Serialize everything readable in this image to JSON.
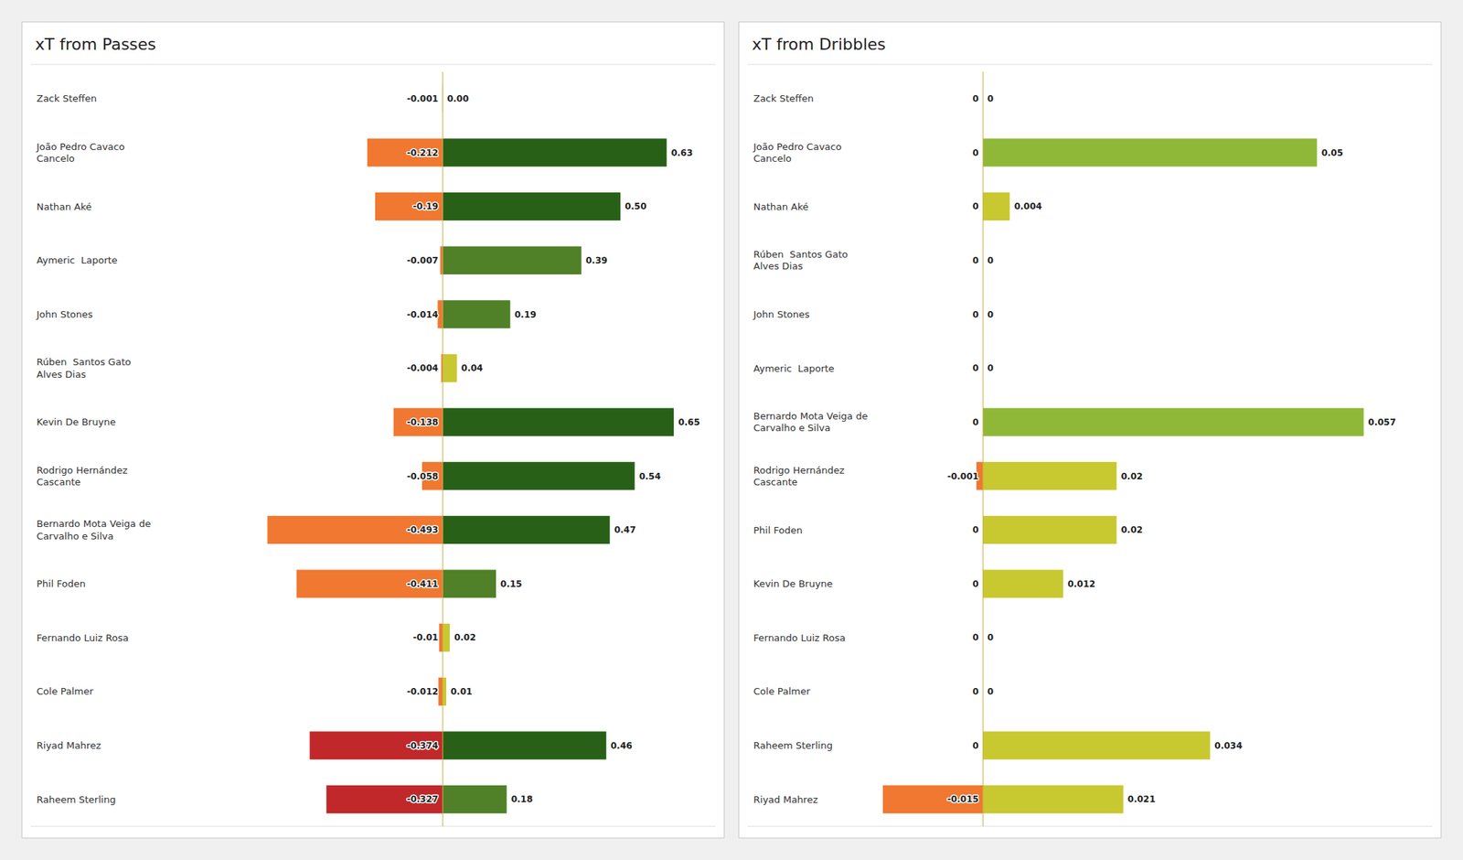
{
  "chart_data": [
    {
      "type": "bar",
      "orientation": "horizontal",
      "title": "xT from Passes",
      "categories": [
        "Zack Steffen",
        "João Pedro Cavaco\nCancelo",
        "Nathan Aké",
        "Aymeric  Laporte",
        "John Stones",
        "Rúben  Santos Gato\nAlves Dias",
        "Kevin De Bruyne",
        "Rodrigo Hernández\nCascante",
        "Bernardo Mota Veiga de\nCarvalho e Silva",
        "Phil Foden",
        "Fernando Luiz Rosa",
        "Cole Palmer",
        "Riyad Mahrez",
        "Raheem Sterling"
      ],
      "series": [
        {
          "values": [
            -0.001,
            -0.212,
            -0.19,
            -0.007,
            -0.014,
            -0.004,
            -0.138,
            -0.058,
            -0.493,
            -0.411,
            -0.01,
            -0.012,
            -0.374,
            -0.327
          ],
          "value_labels": [
            "-0.001",
            "-0.212",
            "-0.19",
            "-0.007",
            "-0.014",
            "-0.004",
            "-0.138",
            "-0.058",
            "-0.493",
            "-0.411",
            "-0.01",
            "-0.012",
            "-0.374",
            "-0.327"
          ],
          "colors": [
            "#D4B84A",
            "#F07830",
            "#F07830",
            "#F07830",
            "#F07830",
            "#F07830",
            "#F07830",
            "#F07830",
            "#F07830",
            "#F07830",
            "#F07830",
            "#F07830",
            "#C0282A",
            "#C0282A"
          ]
        },
        {
          "values": [
            0.0,
            0.63,
            0.5,
            0.39,
            0.19,
            0.04,
            0.65,
            0.54,
            0.47,
            0.15,
            0.02,
            0.01,
            0.46,
            0.18
          ],
          "value_labels": [
            "0.00",
            "0.63",
            "0.50",
            "0.39",
            "0.19",
            "0.04",
            "0.65",
            "0.54",
            "0.47",
            "0.15",
            "0.02",
            "0.01",
            "0.46",
            "0.18"
          ],
          "colors": [
            "#D4B84A",
            "#286018",
            "#286018",
            "#508028",
            "#508028",
            "#C8C830",
            "#286018",
            "#286018",
            "#286018",
            "#508028",
            "#C8C830",
            "#C8C830",
            "#286018",
            "#508028"
          ]
        }
      ],
      "xlim": [
        -1.15855,
        0.767
      ],
      "data_labels": true,
      "tick_labels": false,
      "grid": false
    },
    {
      "type": "bar",
      "orientation": "horizontal",
      "title": "xT from Dribbles",
      "categories": [
        "Zack Steffen",
        "João Pedro Cavaco\nCancelo",
        "Nathan Aké",
        "Rúben  Santos Gato\nAlves Dias",
        "John Stones",
        "Aymeric  Laporte",
        "Bernardo Mota Veiga de\nCarvalho e Silva",
        "Rodrigo Hernández\nCascante",
        "Phil Foden",
        "Kevin De Bruyne",
        "Fernando Luiz Rosa",
        "Cole Palmer",
        "Raheem Sterling",
        "Riyad Mahrez"
      ],
      "series": [
        {
          "values": [
            0.0,
            0.0,
            0.0,
            0.0,
            0.0,
            0.0,
            0.0,
            -0.001,
            0.0,
            0.0,
            0.0,
            0.0,
            0.0,
            -0.015
          ],
          "value_labels": [
            "0",
            "0",
            "0",
            "0",
            "0",
            "0",
            "0",
            "-0.001",
            "0",
            "0",
            "0",
            "0",
            "0",
            "-0.015"
          ],
          "colors": [
            "#D4B84A",
            "#D4B84A",
            "#D4B84A",
            "#D4B84A",
            "#D4B84A",
            "#D4B84A",
            "#D4B84A",
            "#F07830",
            "#D4B84A",
            "#D4B84A",
            "#D4B84A",
            "#D4B84A",
            "#D4B84A",
            "#F07830"
          ]
        },
        {
          "values": [
            0.0,
            0.05,
            0.004,
            0.0,
            0.0,
            0.0,
            0.057,
            0.02,
            0.02,
            0.012,
            0.0,
            0.0,
            0.034,
            0.021
          ],
          "value_labels": [
            "0",
            "0.05",
            "0.004",
            "0",
            "0",
            "0",
            "0.057",
            "0.02",
            "0.02",
            "0.012",
            "0",
            "0",
            "0.034",
            "0.021"
          ],
          "colors": [
            "#D4B84A",
            "#90B838",
            "#C8C830",
            "#D4B84A",
            "#D4B84A",
            "#D4B84A",
            "#90B838",
            "#C8C830",
            "#C8C830",
            "#C8C830",
            "#D4B84A",
            "#D4B84A",
            "#C8C830",
            "#C8C830"
          ]
        }
      ],
      "xlim": [
        -0.03525,
        0.06726
      ],
      "data_labels": true,
      "tick_labels": false,
      "grid": false
    }
  ]
}
